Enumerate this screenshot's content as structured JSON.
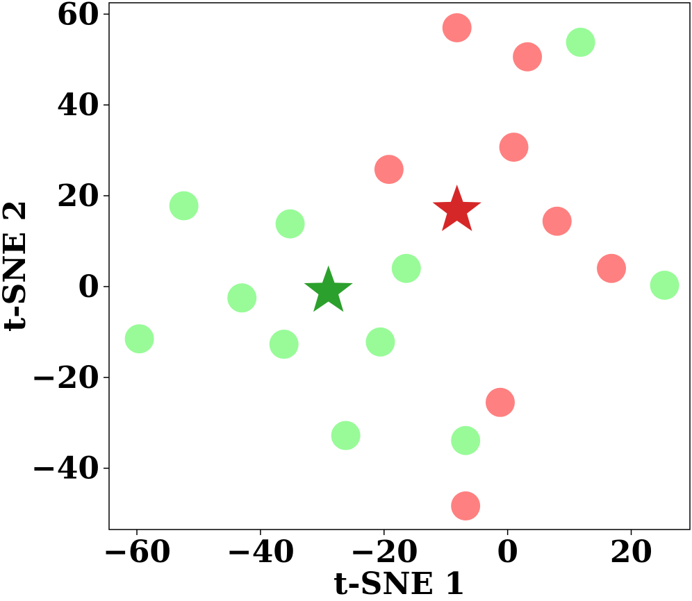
{
  "chart_data": {
    "type": "scatter",
    "title": "",
    "xlabel": "t-SNE 1",
    "ylabel": "t-SNE 2",
    "xlim": [
      -64.5,
      29.5
    ],
    "ylim": [
      -53.5,
      62.5
    ],
    "xticks": [
      -60,
      -40,
      -20,
      0,
      20
    ],
    "yticks": [
      -40,
      -20,
      0,
      20,
      40,
      60
    ],
    "xtick_labels": [
      "−60",
      "−40",
      "−20",
      "0",
      "20"
    ],
    "ytick_labels": [
      "−40",
      "−20",
      "0",
      "20",
      "40",
      "60"
    ],
    "grid": false,
    "series": [
      {
        "color": "#98fb98",
        "marker": "circle",
        "points": [
          [
            11.8,
            53.8
          ],
          [
            -52.4,
            17.8
          ],
          [
            -35.2,
            13.8
          ],
          [
            -16.4,
            4.0
          ],
          [
            25.4,
            0.3
          ],
          [
            -43.0,
            -2.5
          ],
          [
            -59.6,
            -11.5
          ],
          [
            -36.2,
            -12.7
          ],
          [
            -20.6,
            -12.2
          ],
          [
            -26.2,
            -32.8
          ],
          [
            -6.8,
            -33.9
          ]
        ]
      },
      {
        "color": "#ff8080",
        "marker": "circle",
        "points": [
          [
            -8.2,
            57.0
          ],
          [
            3.2,
            50.6
          ],
          [
            1.0,
            30.7
          ],
          [
            -19.2,
            25.8
          ],
          [
            8.0,
            14.4
          ],
          [
            16.8,
            4.0
          ],
          [
            -1.2,
            -25.5
          ],
          [
            -6.8,
            -48.3
          ]
        ]
      },
      {
        "color": "#2ca02c",
        "marker": "star",
        "points": [
          [
            -29.0,
            -1.0
          ]
        ]
      },
      {
        "color": "#d62728",
        "marker": "star",
        "points": [
          [
            -8.2,
            16.8
          ]
        ]
      }
    ]
  }
}
